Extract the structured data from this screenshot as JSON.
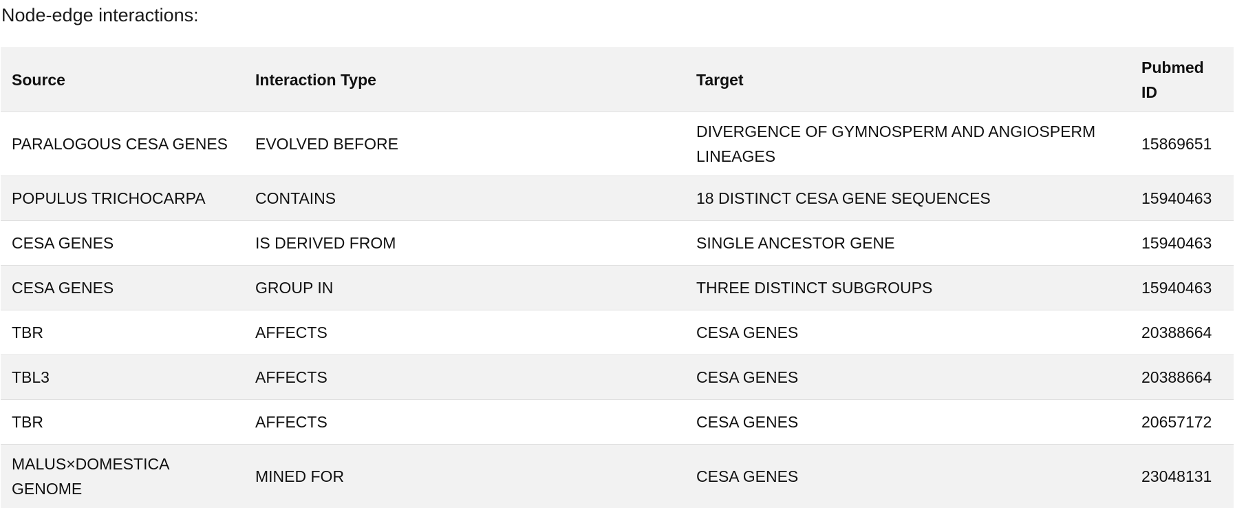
{
  "heading": "Node-edge interactions:",
  "table": {
    "headers": {
      "source": "Source",
      "interaction_type": "Interaction Type",
      "target": "Target",
      "pubmed_id": "Pubmed ID"
    },
    "rows": [
      {
        "source": "PARALOGOUS CESA GENES",
        "interaction_type": "EVOLVED BEFORE",
        "target": "DIVERGENCE OF GYMNOSPERM AND ANGIOSPERM LINEAGES",
        "pubmed_id": "15869651"
      },
      {
        "source": "POPULUS TRICHOCARPA",
        "interaction_type": "CONTAINS",
        "target": "18 DISTINCT CESA GENE SEQUENCES",
        "pubmed_id": "15940463"
      },
      {
        "source": "CESA GENES",
        "interaction_type": "IS DERIVED FROM",
        "target": "SINGLE ANCESTOR GENE",
        "pubmed_id": "15940463"
      },
      {
        "source": "CESA GENES",
        "interaction_type": "GROUP IN",
        "target": "THREE DISTINCT SUBGROUPS",
        "pubmed_id": "15940463"
      },
      {
        "source": "TBR",
        "interaction_type": "AFFECTS",
        "target": "CESA GENES",
        "pubmed_id": "20388664"
      },
      {
        "source": "TBL3",
        "interaction_type": "AFFECTS",
        "target": "CESA GENES",
        "pubmed_id": "20388664"
      },
      {
        "source": "TBR",
        "interaction_type": "AFFECTS",
        "target": "CESA GENES",
        "pubmed_id": "20657172"
      },
      {
        "source": "MALUS×DOMESTICA GENOME",
        "interaction_type": "MINED FOR",
        "target": "CESA GENES",
        "pubmed_id": "23048131"
      }
    ]
  }
}
